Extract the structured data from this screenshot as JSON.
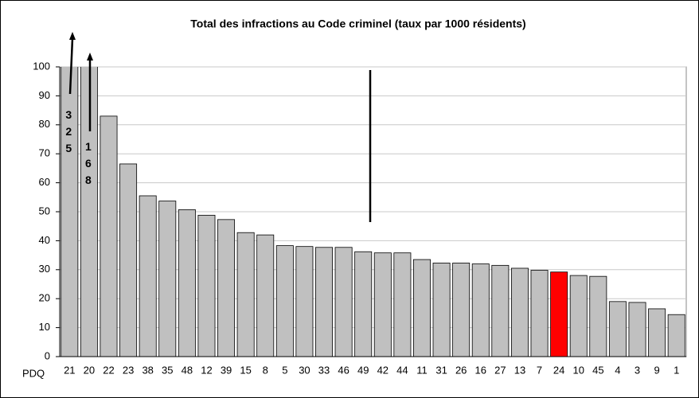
{
  "chart_data": {
    "type": "bar",
    "title": "Total des infractions au Code criminel (taux par 1000 résidents)",
    "x_label": "PDQ",
    "categories": [
      "21",
      "20",
      "22",
      "23",
      "38",
      "35",
      "48",
      "12",
      "39",
      "15",
      "8",
      "5",
      "30",
      "33",
      "46",
      "49",
      "42",
      "44",
      "11",
      "31",
      "26",
      "16",
      "27",
      "13",
      "7",
      "24",
      "10",
      "45",
      "4",
      "3",
      "9",
      "1"
    ],
    "values": [
      325,
      168,
      83,
      66.5,
      55.5,
      53.7,
      50.7,
      48.8,
      47.3,
      42.8,
      42,
      38.3,
      38,
      37.7,
      37.7,
      36.2,
      35.8,
      35.8,
      33.5,
      32.3,
      32.3,
      32,
      31.5,
      30.5,
      29.8,
      29.2,
      28,
      27.7,
      19,
      18.7,
      16.5,
      14.5
    ],
    "value_labels": [
      "325",
      "168",
      null,
      null,
      null,
      null,
      null,
      null,
      null,
      null,
      null,
      null,
      null,
      null,
      null,
      null,
      null,
      null,
      null,
      null,
      null,
      null,
      null,
      null,
      null,
      null,
      null,
      null,
      null,
      null,
      null,
      null
    ],
    "colors": [
      "#c0c0c0",
      "#c0c0c0",
      "#c0c0c0",
      "#c0c0c0",
      "#c0c0c0",
      "#c0c0c0",
      "#c0c0c0",
      "#c0c0c0",
      "#c0c0c0",
      "#c0c0c0",
      "#c0c0c0",
      "#c0c0c0",
      "#c0c0c0",
      "#c0c0c0",
      "#c0c0c0",
      "#c0c0c0",
      "#c0c0c0",
      "#c0c0c0",
      "#c0c0c0",
      "#c0c0c0",
      "#c0c0c0",
      "#c0c0c0",
      "#c0c0c0",
      "#c0c0c0",
      "#c0c0c0",
      "#ff0000",
      "#c0c0c0",
      "#c0c0c0",
      "#c0c0c0",
      "#c0c0c0",
      "#c0c0c0",
      "#c0c0c0"
    ],
    "ylim": [
      0,
      100
    ],
    "yticks": [
      0,
      10,
      20,
      30,
      40,
      50,
      60,
      70,
      80,
      90,
      100
    ],
    "grid": true
  }
}
